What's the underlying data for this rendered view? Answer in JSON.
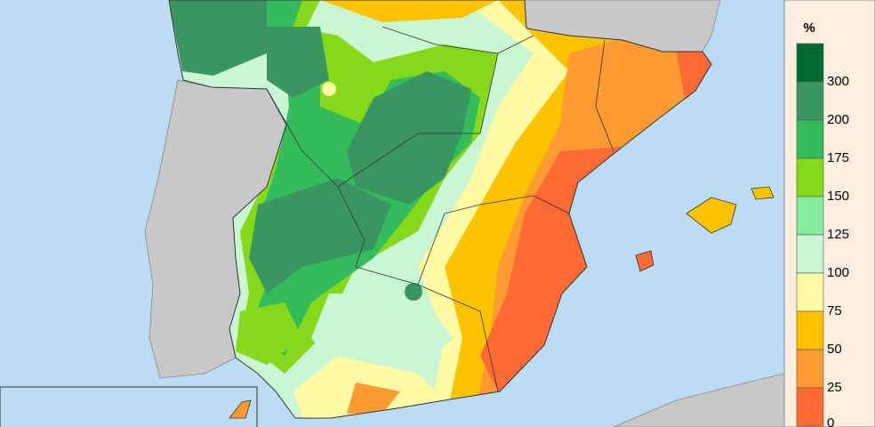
{
  "legend": {
    "title": "%",
    "colors": [
      "#006a35",
      "#3a9661",
      "#34bb5c",
      "#86d91a",
      "#85ec9d",
      "#c9f6d3",
      "#fffaa3",
      "#fdc300",
      "#fd9a32",
      "#fd6a34"
    ],
    "labels": [
      300,
      200,
      175,
      150,
      125,
      100,
      75,
      50,
      25,
      0
    ]
  }
}
